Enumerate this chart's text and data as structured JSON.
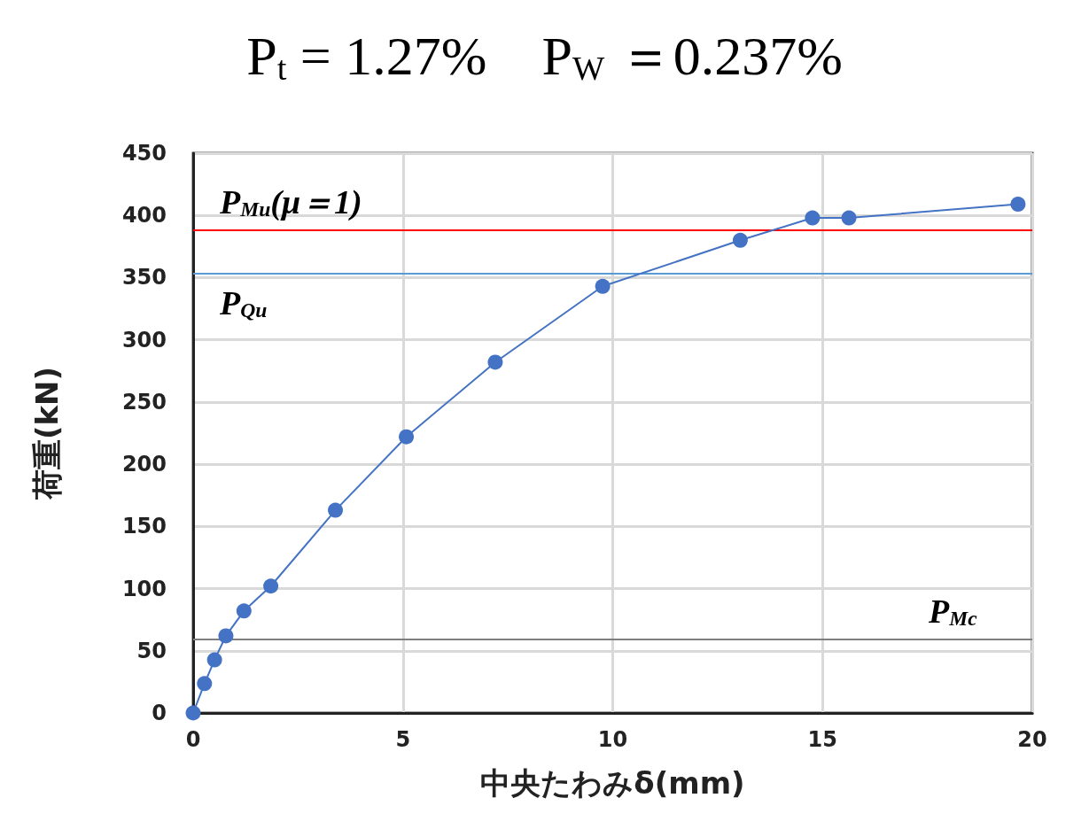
{
  "chart_data": {
    "type": "line",
    "title": "P$_{t}$ = 1.27%　P$_{W}$ ＝0.237%",
    "xlabel": "中央たわみδ(mm)",
    "ylabel": "荷重(kN)",
    "x": [
      0,
      0.27,
      0.51,
      0.78,
      1.21,
      1.85,
      3.39,
      5.08,
      7.2,
      9.76,
      13.04,
      14.76,
      15.63,
      19.66
    ],
    "series": [
      {
        "color": "#4472c4",
        "values": [
          0,
          23.6,
          42.7,
          62,
          82,
          102,
          163,
          222,
          282,
          343,
          380,
          398,
          398,
          409
        ]
      }
    ],
    "xlim": [
      0,
      20
    ],
    "xticks": [
      0,
      5,
      10,
      15,
      20
    ],
    "ylim": [
      0,
      450
    ],
    "yticks": [
      0,
      50,
      100,
      150,
      200,
      250,
      300,
      350,
      400,
      450
    ],
    "grid": true,
    "marker": "circle",
    "line_style": "solid",
    "ref_lines": [
      {
        "axis": "y",
        "value": 388,
        "label": "P$_{Mu}$(μ＝1)",
        "color": "#ff0000",
        "line_style": "solid"
      },
      {
        "axis": "y",
        "value": 353,
        "label": "P$_{Qu}$",
        "color": "#5b9bd5",
        "line_style": "solid"
      },
      {
        "axis": "y",
        "value": 59,
        "label": "P$_{Mc}$",
        "color": "#7f7f7f",
        "line_style": "solid"
      }
    ]
  }
}
